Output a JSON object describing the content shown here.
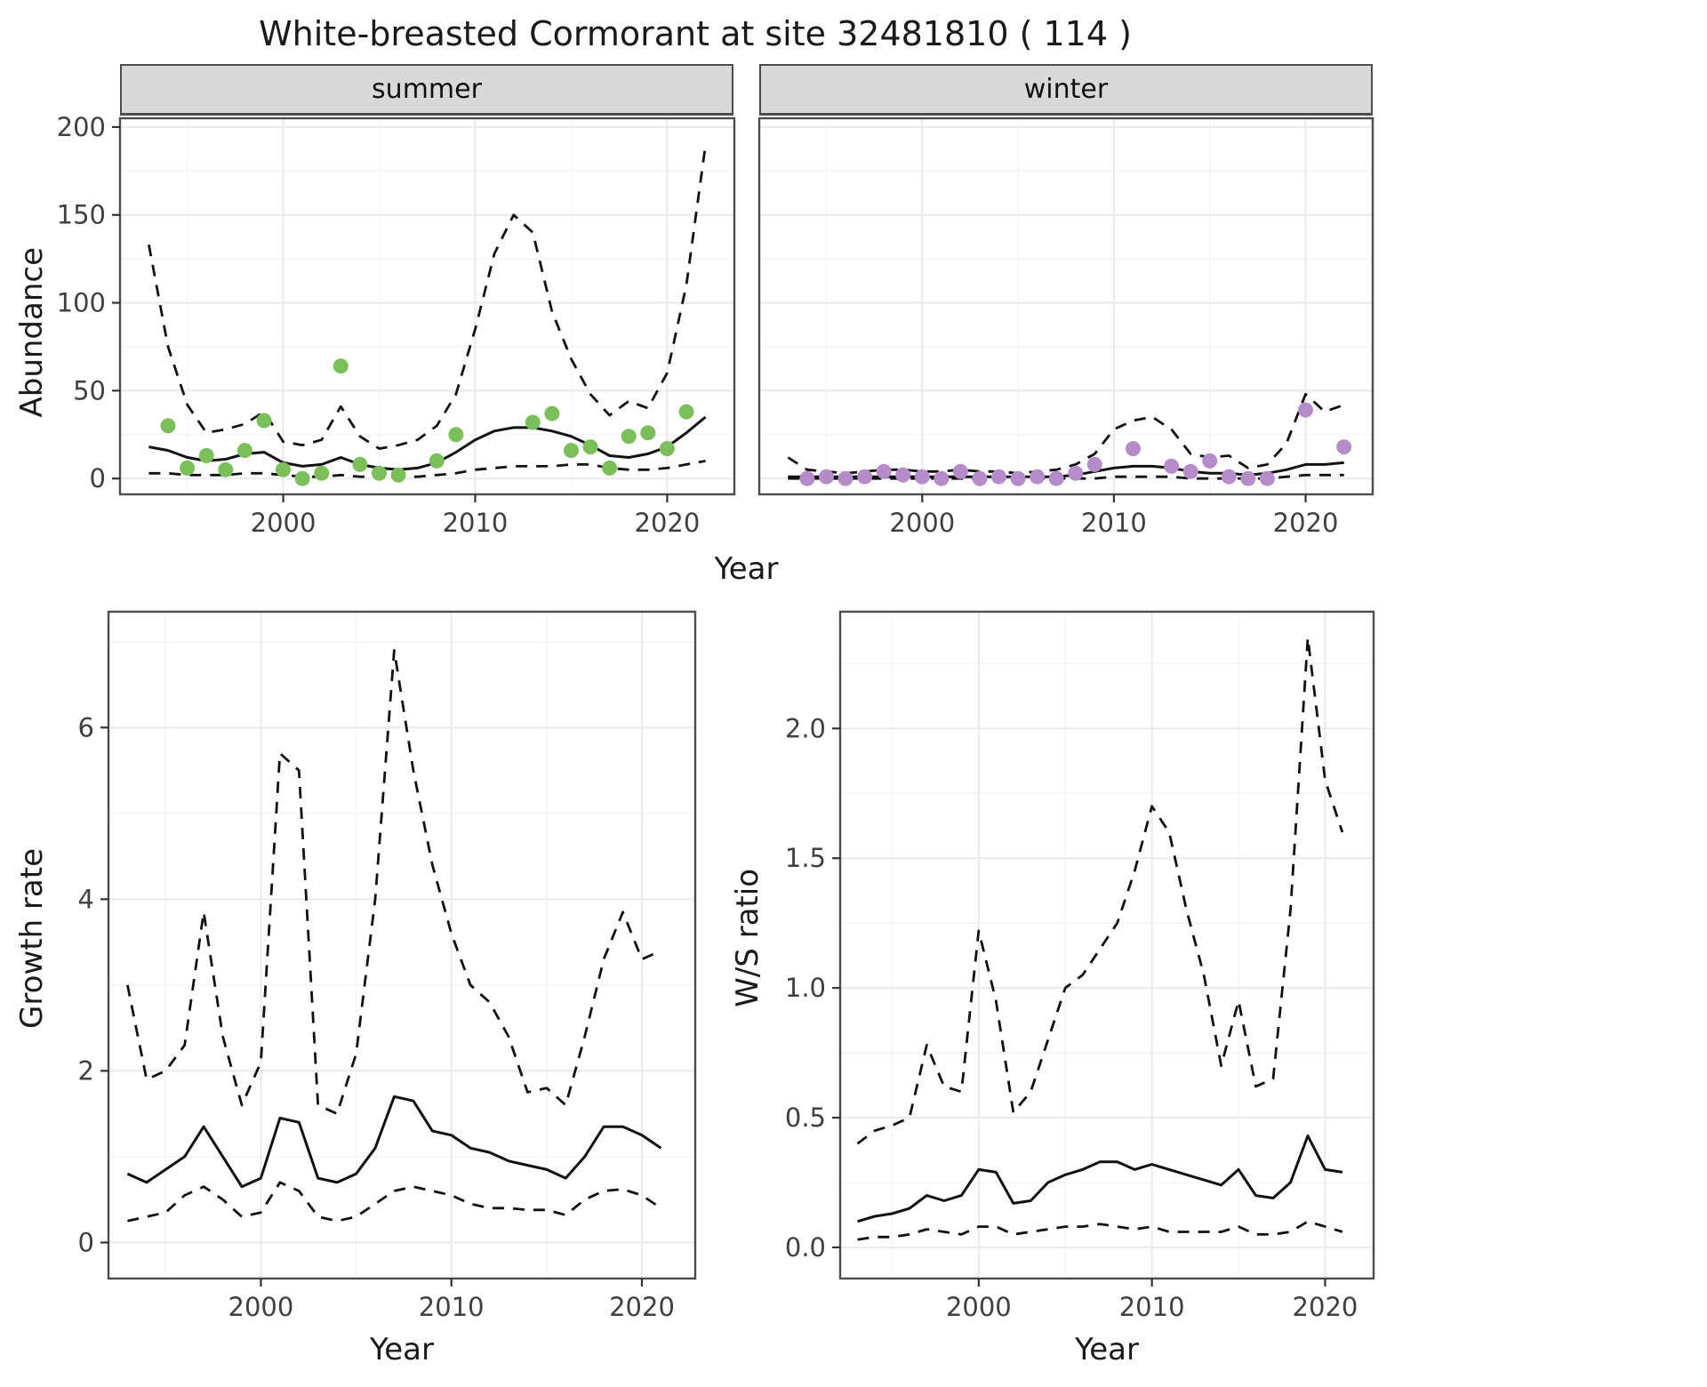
{
  "title": "White-breasted Cormorant at site 32481810 ( 114 )",
  "labels": {
    "abundance_y": "Abundance",
    "growth_y": "Growth rate",
    "ws_y": "W/S ratio",
    "year_x": "Year",
    "facet_summer": "summer",
    "facet_winter": "winter"
  },
  "colors": {
    "summer_points": "#7bbf5a",
    "winter_points": "#b58cc9",
    "line": "#111111",
    "strip_bg": "#d9d9d9",
    "panel_border": "#4d4d4d",
    "grid_major": "#ebebeb",
    "grid_minor": "#f5f5f5"
  },
  "chart_data": {
    "type": "line",
    "title": "White-breasted Cormorant at site 32481810 ( 114 )",
    "legend": "none",
    "grid": "on",
    "panels": [
      {
        "id": "abundance-summer",
        "facet": "summer",
        "xlabel": "Year",
        "ylabel": "Abundance",
        "xlim": [
          1991.5,
          2023.5
        ],
        "ylim": [
          -9,
          205
        ],
        "xticks": {
          "values": [
            2000,
            2010,
            2020
          ],
          "labels": [
            "2000",
            "2010",
            "2020"
          ]
        },
        "yticks": {
          "values": [
            0,
            50,
            100,
            150,
            200
          ],
          "labels": [
            "0",
            "50",
            "100",
            "150",
            "200"
          ],
          "show": true
        },
        "series": [
          {
            "name": "upper-dashed",
            "style": "dashed",
            "x_start": 1993,
            "y": [
              133,
              75,
              42,
              26,
              28,
              31,
              38,
              21,
              19,
              22,
              41,
              24,
              17,
              19,
              22,
              30,
              48,
              85,
              128,
              150,
              140,
              95,
              68,
              48,
              36,
              44,
              40,
              60,
              110,
              190
            ]
          },
          {
            "name": "solid-trend",
            "style": "solid",
            "x_start": 1993,
            "y": [
              18,
              16,
              12,
              10,
              11,
              14,
              15,
              9,
              7,
              8,
              12,
              8,
              6,
              5,
              6,
              9,
              15,
              22,
              27,
              29,
              29,
              27,
              24,
              19,
              13,
              12,
              14,
              18,
              26,
              35
            ]
          },
          {
            "name": "lower-dashed",
            "style": "dashed",
            "x_start": 1993,
            "y": [
              3,
              3,
              2,
              2,
              2,
              3,
              3,
              2,
              1,
              1,
              2,
              1,
              1,
              1,
              1,
              2,
              3,
              5,
              6,
              7,
              7,
              7,
              8,
              8,
              6,
              5,
              5,
              6,
              8,
              10
            ]
          }
        ],
        "points": {
          "name": "summer-observations",
          "color": "#7bbf5a",
          "x": [
            1994,
            1995,
            1996,
            1997,
            1998,
            1999,
            2000,
            2001,
            2002,
            2003,
            2004,
            2005,
            2006,
            2008,
            2009,
            2013,
            2014,
            2015,
            2016,
            2017,
            2018,
            2019,
            2020,
            2021
          ],
          "y": [
            30,
            6,
            13,
            5,
            16,
            33,
            5,
            0,
            3,
            64,
            8,
            3,
            2,
            10,
            25,
            32,
            37,
            16,
            18,
            6,
            24,
            26,
            17,
            38
          ]
        }
      },
      {
        "id": "abundance-winter",
        "facet": "winter",
        "xlabel": "Year",
        "ylabel": "Abundance",
        "xlim": [
          1991.5,
          2023.5
        ],
        "ylim": [
          -9,
          205
        ],
        "xticks": {
          "values": [
            2000,
            2010,
            2020
          ],
          "labels": [
            "2000",
            "2010",
            "2020"
          ]
        },
        "yticks": {
          "values": [
            0,
            50,
            100,
            150,
            200
          ],
          "labels": [
            "0",
            "50",
            "100",
            "150",
            "200"
          ],
          "show": false
        },
        "series": [
          {
            "name": "upper-dashed",
            "style": "dashed",
            "x_start": 1993,
            "y": [
              12,
              5,
              4,
              3,
              4,
              5,
              5,
              4,
              4,
              5,
              4,
              4,
              3,
              4,
              5,
              8,
              14,
              28,
              33,
              35,
              28,
              14,
              12,
              13,
              6,
              8,
              20,
              48,
              38,
              42
            ]
          },
          {
            "name": "solid-trend",
            "style": "solid",
            "x_start": 1993,
            "y": [
              1,
              1,
              1,
              1,
              1,
              1,
              1,
              1,
              1,
              1,
              1,
              1,
              1,
              1,
              1,
              2,
              4,
              6,
              7,
              7,
              6,
              4,
              3,
              3,
              2,
              3,
              5,
              8,
              8,
              9
            ]
          },
          {
            "name": "lower-dashed",
            "style": "dashed",
            "x_start": 1993,
            "y": [
              0,
              0,
              0,
              0,
              0,
              0,
              0,
              0,
              0,
              0,
              0,
              0,
              0,
              0,
              0,
              0,
              0,
              1,
              1,
              1,
              1,
              0,
              0,
              0,
              0,
              0,
              1,
              2,
              2,
              2
            ]
          }
        ],
        "points": {
          "name": "winter-observations",
          "color": "#b58cc9",
          "x": [
            1994,
            1995,
            1996,
            1997,
            1998,
            1999,
            2000,
            2001,
            2002,
            2003,
            2004,
            2005,
            2006,
            2007,
            2008,
            2009,
            2011,
            2013,
            2014,
            2015,
            2016,
            2017,
            2018,
            2020,
            2022
          ],
          "y": [
            0,
            1,
            0,
            1,
            4,
            2,
            1,
            0,
            4,
            0,
            1,
            0,
            1,
            0,
            3,
            8,
            17,
            7,
            4,
            10,
            1,
            0,
            0,
            39,
            18
          ]
        }
      },
      {
        "id": "growth-rate",
        "facet": "",
        "xlabel": "Year",
        "ylabel": "Growth rate",
        "xlim": [
          1992,
          2022.8
        ],
        "ylim": [
          -0.42,
          7.35
        ],
        "xticks": {
          "values": [
            2000,
            2010,
            2020
          ],
          "labels": [
            "2000",
            "2010",
            "2020"
          ]
        },
        "yticks": {
          "values": [
            0,
            2,
            4,
            6
          ],
          "labels": [
            "0",
            "2",
            "4",
            "6"
          ],
          "show": true
        },
        "series": [
          {
            "name": "upper-dashed",
            "style": "dashed",
            "x_start": 1993,
            "y": [
              3.0,
              1.9,
              2.0,
              2.3,
              3.85,
              2.4,
              1.6,
              2.1,
              5.7,
              5.5,
              1.6,
              1.5,
              2.2,
              4.0,
              6.9,
              5.5,
              4.4,
              3.6,
              3.0,
              2.8,
              2.4,
              1.75,
              1.8,
              1.6,
              2.4,
              3.3,
              3.85,
              3.3,
              3.4
            ]
          },
          {
            "name": "solid-trend",
            "style": "solid",
            "x_start": 1993,
            "y": [
              0.8,
              0.7,
              0.85,
              1.0,
              1.35,
              1.0,
              0.65,
              0.75,
              1.45,
              1.4,
              0.75,
              0.7,
              0.8,
              1.1,
              1.7,
              1.65,
              1.3,
              1.25,
              1.1,
              1.05,
              0.95,
              0.9,
              0.85,
              0.75,
              1.0,
              1.35,
              1.35,
              1.25,
              1.1
            ]
          },
          {
            "name": "lower-dashed",
            "style": "dashed",
            "x_start": 1993,
            "y": [
              0.25,
              0.3,
              0.35,
              0.55,
              0.65,
              0.5,
              0.3,
              0.35,
              0.7,
              0.6,
              0.3,
              0.25,
              0.3,
              0.45,
              0.6,
              0.65,
              0.6,
              0.55,
              0.45,
              0.4,
              0.4,
              0.38,
              0.38,
              0.32,
              0.5,
              0.6,
              0.62,
              0.55,
              0.4
            ]
          }
        ]
      },
      {
        "id": "ws-ratio",
        "facet": "",
        "xlabel": "Year",
        "ylabel": "W/S ratio",
        "xlim": [
          1992,
          2022.8
        ],
        "ylim": [
          -0.12,
          2.45
        ],
        "xticks": {
          "values": [
            2000,
            2010,
            2020
          ],
          "labels": [
            "2000",
            "2010",
            "2020"
          ]
        },
        "yticks": {
          "values": [
            0,
            0.5,
            1,
            1.5,
            2
          ],
          "labels": [
            "0.0",
            "0.5",
            "1.0",
            "1.5",
            "2.0"
          ],
          "show": true
        },
        "series": [
          {
            "name": "upper-dashed",
            "style": "dashed",
            "x_start": 1993,
            "y": [
              0.4,
              0.45,
              0.47,
              0.5,
              0.78,
              0.62,
              0.6,
              1.22,
              0.95,
              0.52,
              0.6,
              0.8,
              1.0,
              1.05,
              1.15,
              1.25,
              1.45,
              1.7,
              1.6,
              1.3,
              1.05,
              0.7,
              0.95,
              0.62,
              0.65,
              1.3,
              2.35,
              1.8,
              1.6
            ]
          },
          {
            "name": "solid-trend",
            "style": "solid",
            "x_start": 1993,
            "y": [
              0.1,
              0.12,
              0.13,
              0.15,
              0.2,
              0.18,
              0.2,
              0.3,
              0.29,
              0.17,
              0.18,
              0.25,
              0.28,
              0.3,
              0.33,
              0.33,
              0.3,
              0.32,
              0.3,
              0.28,
              0.26,
              0.24,
              0.3,
              0.2,
              0.19,
              0.25,
              0.43,
              0.3,
              0.29
            ]
          },
          {
            "name": "lower-dashed",
            "style": "dashed",
            "x_start": 1993,
            "y": [
              0.03,
              0.04,
              0.04,
              0.05,
              0.07,
              0.06,
              0.05,
              0.08,
              0.08,
              0.05,
              0.06,
              0.07,
              0.08,
              0.08,
              0.09,
              0.08,
              0.07,
              0.08,
              0.06,
              0.06,
              0.06,
              0.06,
              0.08,
              0.05,
              0.05,
              0.06,
              0.1,
              0.08,
              0.06
            ]
          }
        ]
      }
    ]
  }
}
